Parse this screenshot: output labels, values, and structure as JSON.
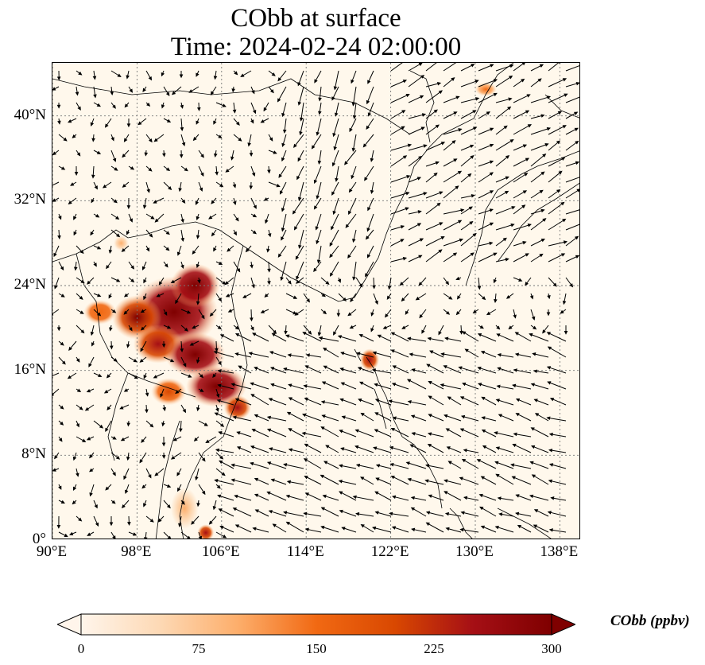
{
  "title": {
    "line1": "CObb at surface",
    "line2": "Time: 2024-02-24 02:00:00"
  },
  "map": {
    "lon_range": [
      90,
      140
    ],
    "lat_range": [
      0,
      45
    ],
    "x_ticks": [
      {
        "value": 90,
        "label": "90°E"
      },
      {
        "value": 98,
        "label": "98°E"
      },
      {
        "value": 106,
        "label": "106°E"
      },
      {
        "value": 114,
        "label": "114°E"
      },
      {
        "value": 122,
        "label": "122°E"
      },
      {
        "value": 130,
        "label": "130°E"
      },
      {
        "value": 138,
        "label": "138°E"
      }
    ],
    "y_ticks": [
      {
        "value": 0,
        "label": "0°"
      },
      {
        "value": 8,
        "label": "8°N"
      },
      {
        "value": 16,
        "label": "16°N"
      },
      {
        "value": 24,
        "label": "24°N"
      },
      {
        "value": 32,
        "label": "32°N"
      },
      {
        "value": 40,
        "label": "40°N"
      }
    ],
    "gridlines": true,
    "hotspots": [
      {
        "lon": 101.5,
        "lat": 21.5,
        "r_lon": 3.2,
        "r_lat": 2.6,
        "value": 300
      },
      {
        "lon": 103.5,
        "lat": 24.0,
        "r_lon": 1.8,
        "r_lat": 1.6,
        "value": 290
      },
      {
        "lon": 98.0,
        "lat": 21.0,
        "r_lon": 1.8,
        "r_lat": 1.6,
        "value": 280
      },
      {
        "lon": 100.0,
        "lat": 18.5,
        "r_lon": 1.8,
        "r_lat": 1.4,
        "value": 260
      },
      {
        "lon": 103.5,
        "lat": 17.5,
        "r_lon": 2.2,
        "r_lat": 1.6,
        "value": 300
      },
      {
        "lon": 105.5,
        "lat": 14.5,
        "r_lon": 2.2,
        "r_lat": 1.5,
        "value": 300
      },
      {
        "lon": 107.5,
        "lat": 12.5,
        "r_lon": 1.0,
        "r_lat": 0.9,
        "value": 270
      },
      {
        "lon": 101.0,
        "lat": 14.0,
        "r_lon": 1.3,
        "r_lat": 1.0,
        "value": 200
      },
      {
        "lon": 94.5,
        "lat": 21.5,
        "r_lon": 1.2,
        "r_lat": 0.9,
        "value": 160
      },
      {
        "lon": 120.0,
        "lat": 17.0,
        "r_lon": 0.7,
        "r_lat": 0.8,
        "value": 260
      },
      {
        "lon": 131.0,
        "lat": 42.5,
        "r_lon": 0.8,
        "r_lat": 0.5,
        "value": 130
      },
      {
        "lon": 102.5,
        "lat": 3.0,
        "r_lon": 1.0,
        "r_lat": 1.5,
        "value": 90
      },
      {
        "lon": 104.5,
        "lat": 0.7,
        "r_lon": 0.6,
        "r_lat": 0.6,
        "value": 260
      },
      {
        "lon": 96.5,
        "lat": 28.0,
        "r_lon": 0.6,
        "r_lat": 0.6,
        "value": 80
      }
    ],
    "wind_vectors": "black arrows"
  },
  "colorbar": {
    "label": "CObb (ppbv)",
    "min": 0,
    "max": 300,
    "ticks": [
      {
        "value": 0,
        "label": "0"
      },
      {
        "value": 75,
        "label": "75"
      },
      {
        "value": 150,
        "label": "150"
      },
      {
        "value": 225,
        "label": "225"
      },
      {
        "value": 300,
        "label": "300"
      }
    ],
    "colors": [
      "#fff5eb",
      "#fdd9b5",
      "#fdae6b",
      "#f16913",
      "#d94801",
      "#a50f15",
      "#7f0000"
    ]
  }
}
